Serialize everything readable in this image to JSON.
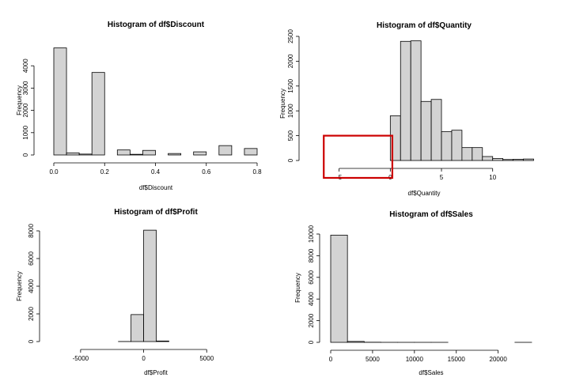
{
  "colors": {
    "bar_fill": "#d3d3d3",
    "bar_stroke": "#000000",
    "highlight": "#cc0000"
  },
  "chart_data": [
    {
      "type": "bar",
      "title": "Histogram of df$Discount",
      "xlabel": "df$Discount",
      "ylabel": "Frequency",
      "xlim": [
        0.0,
        0.8
      ],
      "ylim": [
        0,
        5000
      ],
      "xticks": [
        0.0,
        0.2,
        0.4,
        0.6,
        0.8
      ],
      "xtick_labels": [
        "0.0",
        "0.2",
        "0.4",
        "0.6",
        "0.8"
      ],
      "yticks": [
        0,
        1000,
        2000,
        3000,
        4000
      ],
      "ytick_labels": [
        "0",
        "1000",
        "2000",
        "3000",
        "4000"
      ],
      "bins": [
        {
          "x0": 0.0,
          "x1": 0.05,
          "count": 4800
        },
        {
          "x0": 0.05,
          "x1": 0.1,
          "count": 95
        },
        {
          "x0": 0.1,
          "x1": 0.15,
          "count": 40
        },
        {
          "x0": 0.15,
          "x1": 0.2,
          "count": 3700
        },
        {
          "x0": 0.2,
          "x1": 0.25,
          "count": 0
        },
        {
          "x0": 0.25,
          "x1": 0.3,
          "count": 225
        },
        {
          "x0": 0.3,
          "x1": 0.35,
          "count": 30
        },
        {
          "x0": 0.35,
          "x1": 0.4,
          "count": 205
        },
        {
          "x0": 0.4,
          "x1": 0.45,
          "count": 0
        },
        {
          "x0": 0.45,
          "x1": 0.5,
          "count": 65
        },
        {
          "x0": 0.5,
          "x1": 0.55,
          "count": 0
        },
        {
          "x0": 0.55,
          "x1": 0.6,
          "count": 140
        },
        {
          "x0": 0.6,
          "x1": 0.65,
          "count": 0
        },
        {
          "x0": 0.65,
          "x1": 0.7,
          "count": 420
        },
        {
          "x0": 0.7,
          "x1": 0.75,
          "count": 0
        },
        {
          "x0": 0.75,
          "x1": 0.8,
          "count": 290
        }
      ]
    },
    {
      "type": "bar",
      "title": "Histogram of df$Quantity",
      "xlabel": "df$Quantity",
      "ylabel": "Frequency",
      "xlim": [
        -7.6,
        13.5
      ],
      "ylim": [
        0,
        2500
      ],
      "xticks": [
        -5,
        0,
        5,
        10
      ],
      "xtick_labels": [
        "-5",
        "0",
        "5",
        "10"
      ],
      "yticks": [
        0,
        500,
        1000,
        1500,
        2000,
        2500
      ],
      "ytick_labels": [
        "0",
        "500",
        "1000",
        "1500",
        "2000",
        "2500"
      ],
      "bins": [
        {
          "x0": -6,
          "x1": -5,
          "count": 0
        },
        {
          "x0": -5,
          "x1": -4,
          "count": 0
        },
        {
          "x0": -4,
          "x1": -3,
          "count": 0
        },
        {
          "x0": -3,
          "x1": -2,
          "count": 0
        },
        {
          "x0": -2,
          "x1": -1,
          "count": 0
        },
        {
          "x0": -1,
          "x1": 0,
          "count": 0
        },
        {
          "x0": 0,
          "x1": 1,
          "count": 900
        },
        {
          "x0": 1,
          "x1": 2,
          "count": 2400
        },
        {
          "x0": 2,
          "x1": 3,
          "count": 2410
        },
        {
          "x0": 3,
          "x1": 4,
          "count": 1190
        },
        {
          "x0": 4,
          "x1": 5,
          "count": 1230
        },
        {
          "x0": 5,
          "x1": 6,
          "count": 580
        },
        {
          "x0": 6,
          "x1": 7,
          "count": 610
        },
        {
          "x0": 7,
          "x1": 8,
          "count": 260
        },
        {
          "x0": 8,
          "x1": 9,
          "count": 260
        },
        {
          "x0": 9,
          "x1": 10,
          "count": 80
        },
        {
          "x0": 10,
          "x1": 11,
          "count": 40
        },
        {
          "x0": 11,
          "x1": 12,
          "count": 20
        },
        {
          "x0": 12,
          "x1": 13,
          "count": 25
        },
        {
          "x0": 13,
          "x1": 14,
          "count": 30
        }
      ],
      "highlight_box": {
        "x_range": [
          -6.5,
          0.2
        ],
        "y_range": [
          -350,
          500
        ]
      }
    },
    {
      "type": "bar",
      "title": "Histogram of df$Profit",
      "xlabel": "df$Profit",
      "ylabel": "Frequency",
      "xlim": [
        -7000,
        9000
      ],
      "ylim": [
        0,
        8000
      ],
      "xticks": [
        -5000,
        0,
        5000
      ],
      "xtick_labels": [
        "-5000",
        "0",
        "5000"
      ],
      "yticks": [
        0,
        2000,
        4000,
        6000,
        8000
      ],
      "ytick_labels": [
        "0",
        "2000",
        "4000",
        "6000",
        "8000"
      ],
      "bins": [
        {
          "x0": -7000,
          "x1": -6000,
          "count": 0
        },
        {
          "x0": -6000,
          "x1": -5000,
          "count": 0
        },
        {
          "x0": -5000,
          "x1": -4000,
          "count": 0
        },
        {
          "x0": -4000,
          "x1": -3000,
          "count": 0
        },
        {
          "x0": -3000,
          "x1": -2000,
          "count": 0
        },
        {
          "x0": -2000,
          "x1": -1000,
          "count": 5
        },
        {
          "x0": -1000,
          "x1": 0,
          "count": 1950
        },
        {
          "x0": 0,
          "x1": 1000,
          "count": 8050
        },
        {
          "x0": 1000,
          "x1": 2000,
          "count": 40
        },
        {
          "x0": 2000,
          "x1": 3000,
          "count": 0
        },
        {
          "x0": 3000,
          "x1": 4000,
          "count": 0
        },
        {
          "x0": 4000,
          "x1": 5000,
          "count": 0
        },
        {
          "x0": 5000,
          "x1": 6000,
          "count": 0
        },
        {
          "x0": 6000,
          "x1": 7000,
          "count": 0
        },
        {
          "x0": 7000,
          "x1": 8000,
          "count": 0
        },
        {
          "x0": 8000,
          "x1": 9000,
          "count": 0
        }
      ]
    },
    {
      "type": "bar",
      "title": "Histogram of df$Sales",
      "xlabel": "df$Sales",
      "ylabel": "Frequency",
      "xlim": [
        0,
        24000
      ],
      "ylim": [
        0,
        10000
      ],
      "xticks": [
        0,
        5000,
        10000,
        15000,
        20000
      ],
      "xtick_labels": [
        "0",
        "5000",
        "10000",
        "15000",
        "20000"
      ],
      "yticks": [
        0,
        2000,
        4000,
        6000,
        8000,
        10000
      ],
      "ytick_labels": [
        "0",
        "2000",
        "4000",
        "6000",
        "8000",
        "10000"
      ],
      "bins": [
        {
          "x0": 0,
          "x1": 2000,
          "count": 9900
        },
        {
          "x0": 2000,
          "x1": 4000,
          "count": 85
        },
        {
          "x0": 4000,
          "x1": 6000,
          "count": 12
        },
        {
          "x0": 6000,
          "x1": 8000,
          "count": 3
        },
        {
          "x0": 8000,
          "x1": 10000,
          "count": 2
        },
        {
          "x0": 10000,
          "x1": 12000,
          "count": 1
        },
        {
          "x0": 12000,
          "x1": 14000,
          "count": 1
        },
        {
          "x0": 14000,
          "x1": 16000,
          "count": 0
        },
        {
          "x0": 16000,
          "x1": 18000,
          "count": 0
        },
        {
          "x0": 18000,
          "x1": 20000,
          "count": 0
        },
        {
          "x0": 20000,
          "x1": 22000,
          "count": 0
        },
        {
          "x0": 22000,
          "x1": 24000,
          "count": 1
        }
      ]
    }
  ]
}
